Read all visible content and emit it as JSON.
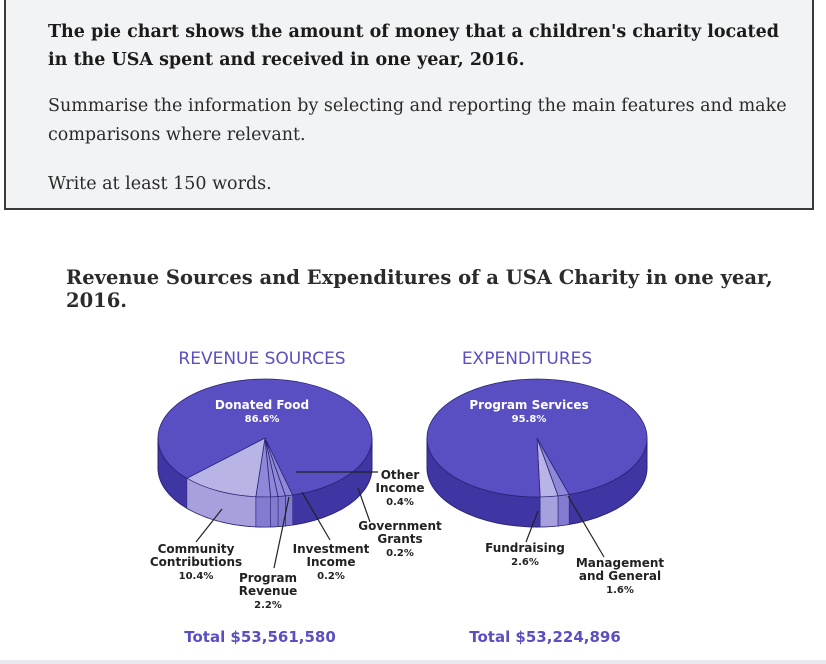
{
  "task": {
    "title": "The pie chart shows the amount of money that a children's charity located in the USA spent and received in one year, 2016.",
    "instruction": "Summarise the information by selecting and reporting the main features and make comparisons where relevant.",
    "words": "Write at least 150 words."
  },
  "chart_data": {
    "title": "Revenue Sources and Expenditures of a USA Charity in one year, 2016.",
    "charts": [
      {
        "type": "pie",
        "title": "REVENUE SOURCES",
        "total": "Total $53,561,580",
        "slices": [
          {
            "name": "Donated Food",
            "label": "Donated Food",
            "pct": "86.6%",
            "value": 86.6
          },
          {
            "name": "Community Contributions",
            "label": "Community Contributions",
            "pct": "10.4%",
            "value": 10.4
          },
          {
            "name": "Program Revenue",
            "label": "Program Revenue",
            "pct": "2.2%",
            "value": 2.2
          },
          {
            "name": "Investment Income",
            "label": "Investment Income",
            "pct": "0.2%",
            "value": 0.2
          },
          {
            "name": "Government Grants",
            "label": "Government Grants",
            "pct": "0.2%",
            "value": 0.2
          },
          {
            "name": "Other Income",
            "label": "Other Income",
            "pct": "0.4%",
            "value": 0.4
          }
        ]
      },
      {
        "type": "pie",
        "title": "EXPENDITURES",
        "total": "Total $53,224,896",
        "slices": [
          {
            "name": "Program Services",
            "label": "Program Services",
            "pct": "95.8%",
            "value": 95.8
          },
          {
            "name": "Fundraising",
            "label": "Fundraising",
            "pct": "2.6%",
            "value": 2.6
          },
          {
            "name": "Management and General",
            "label": "Management and General",
            "pct": "1.6%",
            "value": 1.6
          }
        ]
      }
    ],
    "colors": {
      "main": "#5a4fc2",
      "main_dark": "#3f35a3",
      "minor": "#8f88d8",
      "light": "#b9b4e6",
      "title": "#5a4fc2",
      "label": "#222222"
    }
  }
}
